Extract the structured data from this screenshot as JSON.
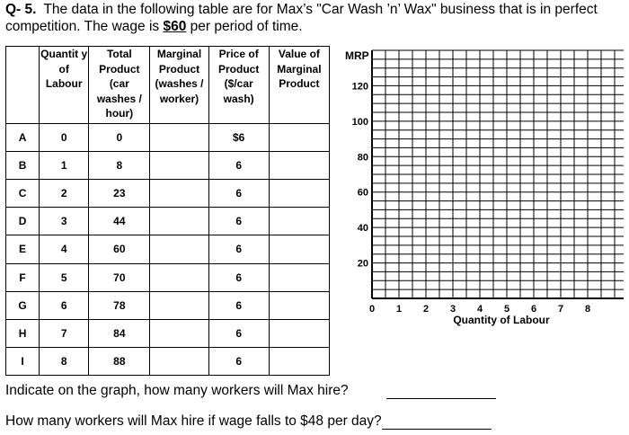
{
  "question": {
    "number": "Q- 5.",
    "text_before": "The data in the following table are for Max’s \"Car Wash ’n’ Wax\" business that is in perfect competition. The wage is ",
    "wage": "$60",
    "text_after": " per period of time."
  },
  "table": {
    "headers": [
      "Quantit y of Labour",
      "Total Product (car washes / hour)",
      "Marginal Product (washes / worker)",
      "Price of Product ($/car wash)",
      "Value of Marginal Product"
    ],
    "rows": [
      {
        "label": "A",
        "quantity": "0",
        "total": "0",
        "marginal": "",
        "price": "$6",
        "vmp": ""
      },
      {
        "label": "B",
        "quantity": "1",
        "total": "8",
        "marginal": "",
        "price": "6",
        "vmp": ""
      },
      {
        "label": "C",
        "quantity": "2",
        "total": "23",
        "marginal": "",
        "price": "6",
        "vmp": ""
      },
      {
        "label": "D",
        "quantity": "3",
        "total": "44",
        "marginal": "",
        "price": "6",
        "vmp": ""
      },
      {
        "label": "E",
        "quantity": "4",
        "total": "60",
        "marginal": "",
        "price": "6",
        "vmp": ""
      },
      {
        "label": "F",
        "quantity": "5",
        "total": "70",
        "marginal": "",
        "price": "6",
        "vmp": ""
      },
      {
        "label": "G",
        "quantity": "6",
        "total": "78",
        "marginal": "",
        "price": "6",
        "vmp": ""
      },
      {
        "label": "H",
        "quantity": "7",
        "total": "84",
        "marginal": "",
        "price": "6",
        "vmp": ""
      },
      {
        "label": "I",
        "quantity": "8",
        "total": "88",
        "marginal": "",
        "price": "6",
        "vmp": ""
      }
    ]
  },
  "chart_data": {
    "type": "line",
    "title": "",
    "ylabel": "MRP",
    "xlabel": "Quantity of Labour",
    "x_ticks": [
      "0",
      "1",
      "2",
      "3",
      "4",
      "5",
      "6",
      "7",
      "8"
    ],
    "y_ticks": [
      "20",
      "40",
      "60",
      "80",
      "100",
      "120"
    ],
    "xlim": [
      0,
      8
    ],
    "ylim": [
      0,
      140
    ],
    "grid": true,
    "series": []
  },
  "answers": [
    {
      "text": "Indicate on the graph, how many workers will Max hire?"
    },
    {
      "text": "How many workers will Max hire if wage falls to $48 per day?"
    }
  ]
}
